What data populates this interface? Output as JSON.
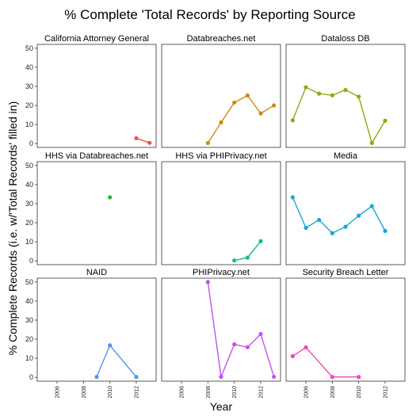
{
  "chart_data": {
    "type": "line",
    "title": "% Complete 'Total Records' by Reporting Source",
    "xlabel": "Year",
    "ylabel": "% Complete Records (i.e. w/'Total Records' filled in)",
    "xlim": [
      2004.5,
      2013.5
    ],
    "ylim": [
      -2,
      52
    ],
    "x_ticks": [
      2006,
      2008,
      2010,
      2012
    ],
    "y_ticks": [
      0,
      10,
      20,
      30,
      40,
      50
    ],
    "grid": false,
    "legend": "none",
    "panels": [
      {
        "name": "California Attorney General",
        "color": "#e8534a",
        "points": [
          [
            2012,
            2.8
          ],
          [
            2013,
            0.4
          ]
        ]
      },
      {
        "name": "Databreaches.net",
        "color": "#cc8a14",
        "points": [
          [
            2008,
            0.3
          ],
          [
            2009,
            11.1
          ],
          [
            2010,
            21.5
          ],
          [
            2011,
            25.2
          ],
          [
            2012,
            15.8
          ],
          [
            2013,
            20.0
          ]
        ]
      },
      {
        "name": "Dataloss DB",
        "color": "#8aab16",
        "points": [
          [
            2005,
            12.2
          ],
          [
            2006,
            29.5
          ],
          [
            2007,
            26.2
          ],
          [
            2008,
            25.3
          ],
          [
            2009,
            28.1
          ],
          [
            2010,
            24.6
          ],
          [
            2011,
            0.3
          ],
          [
            2012,
            12.0
          ]
        ]
      },
      {
        "name": "HHS via Databreaches.net",
        "color": "#2ab42e",
        "points": [
          [
            2010,
            33.3
          ]
        ]
      },
      {
        "name": "HHS via PHIPrivacy.net",
        "color": "#15b88f",
        "points": [
          [
            2010,
            0.2
          ],
          [
            2011,
            1.7
          ],
          [
            2012,
            10.3
          ]
        ]
      },
      {
        "name": "Media",
        "color": "#19a6d6",
        "points": [
          [
            2005,
            33.3
          ],
          [
            2006,
            17.3
          ],
          [
            2007,
            21.5
          ],
          [
            2008,
            14.5
          ],
          [
            2009,
            17.9
          ],
          [
            2010,
            23.7
          ],
          [
            2011,
            28.7
          ],
          [
            2012,
            15.7
          ]
        ]
      },
      {
        "name": "NAID",
        "color": "#5a90ec",
        "points": [
          [
            2009,
            0.2
          ],
          [
            2010,
            16.8
          ],
          [
            2012,
            0.2
          ]
        ]
      },
      {
        "name": "PHIPrivacy.net",
        "color": "#c550ee",
        "points": [
          [
            2008,
            50.0
          ],
          [
            2009,
            0.3
          ],
          [
            2010,
            17.3
          ],
          [
            2011,
            15.8
          ],
          [
            2012,
            22.7
          ],
          [
            2013,
            0.3
          ]
        ]
      },
      {
        "name": "Security Breach Letter",
        "color": "#ee47b7",
        "points": [
          [
            2005,
            11.1
          ],
          [
            2006,
            15.7
          ],
          [
            2008,
            0.2
          ],
          [
            2010,
            0.2
          ]
        ]
      }
    ]
  }
}
